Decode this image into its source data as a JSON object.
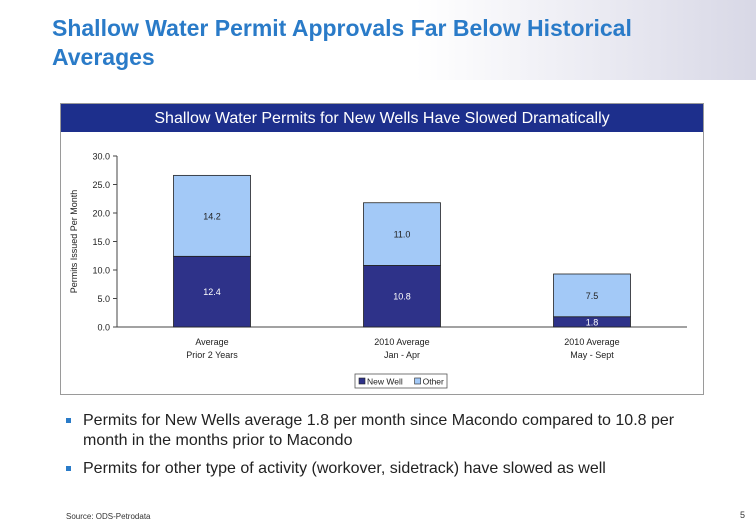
{
  "slide": {
    "title": "Shallow Water Permit Approvals Far Below Historical Averages",
    "source": "Source: ODS-Petrodata",
    "page_number": "5"
  },
  "bullets": [
    "Permits for New Wells average 1.8 per month since Macondo compared to 10.8 per month in the months prior to Macondo",
    "Permits for other type of activity (workover, sidetrack) have slowed as well"
  ],
  "chart_data": {
    "type": "bar",
    "stacked": true,
    "title": "Shallow Water Permits for New Wells Have Slowed Dramatically",
    "ylabel": "Permits Issued Per Month",
    "ylim": [
      0,
      30
    ],
    "yticks": [
      "0.0",
      "5.0",
      "10.0",
      "15.0",
      "20.0",
      "25.0",
      "30.0"
    ],
    "categories": [
      [
        "Average",
        "Prior 2 Years"
      ],
      [
        "2010 Average",
        "Jan - Apr"
      ],
      [
        "2010 Average",
        "May - Sept"
      ]
    ],
    "series": [
      {
        "name": "New Well",
        "values": [
          12.4,
          10.8,
          1.8
        ],
        "labels": [
          "12.4",
          "10.8",
          "1.8"
        ],
        "color": "#2e3289"
      },
      {
        "name": "Other",
        "values": [
          14.2,
          11.0,
          7.5
        ],
        "labels": [
          "14.2",
          "11.0",
          "7.5"
        ],
        "color": "#a3c9f7"
      }
    ],
    "legend_position": "bottom-center",
    "grid": false
  }
}
